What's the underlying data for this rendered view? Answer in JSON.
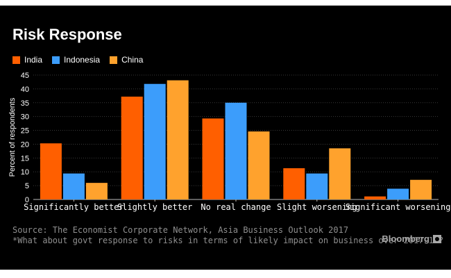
{
  "chart_data": {
    "type": "bar",
    "title": "Risk Response",
    "ylabel": "Percent of respondents",
    "xlabel": "",
    "categories": [
      "Significantly better",
      "Slightly better",
      "No real change",
      "Slight worsening",
      "Significant worsening"
    ],
    "series": [
      {
        "name": "India",
        "color": "#ff5f00",
        "values": [
          20.3,
          37.2,
          29.3,
          11.3,
          1.1
        ]
      },
      {
        "name": "Indonesia",
        "color": "#3c9dfb",
        "values": [
          9.4,
          41.8,
          35.0,
          9.4,
          3.9
        ]
      },
      {
        "name": "China",
        "color": "#ffa22d",
        "values": [
          6.0,
          43.1,
          24.6,
          18.5,
          7.1
        ]
      }
    ],
    "ylim": [
      0,
      45
    ],
    "yticks": [
      0,
      5,
      10,
      15,
      20,
      25,
      30,
      35,
      40,
      45
    ],
    "grid": true,
    "legend_position": "top-left"
  },
  "footer": {
    "source": "Source: The Economist Corporate Network, Asia Business Outlook 2017",
    "note": "*What about govt response to risks in terms of likely impact on business over 2017-19?",
    "brand": "Bloomberg"
  }
}
